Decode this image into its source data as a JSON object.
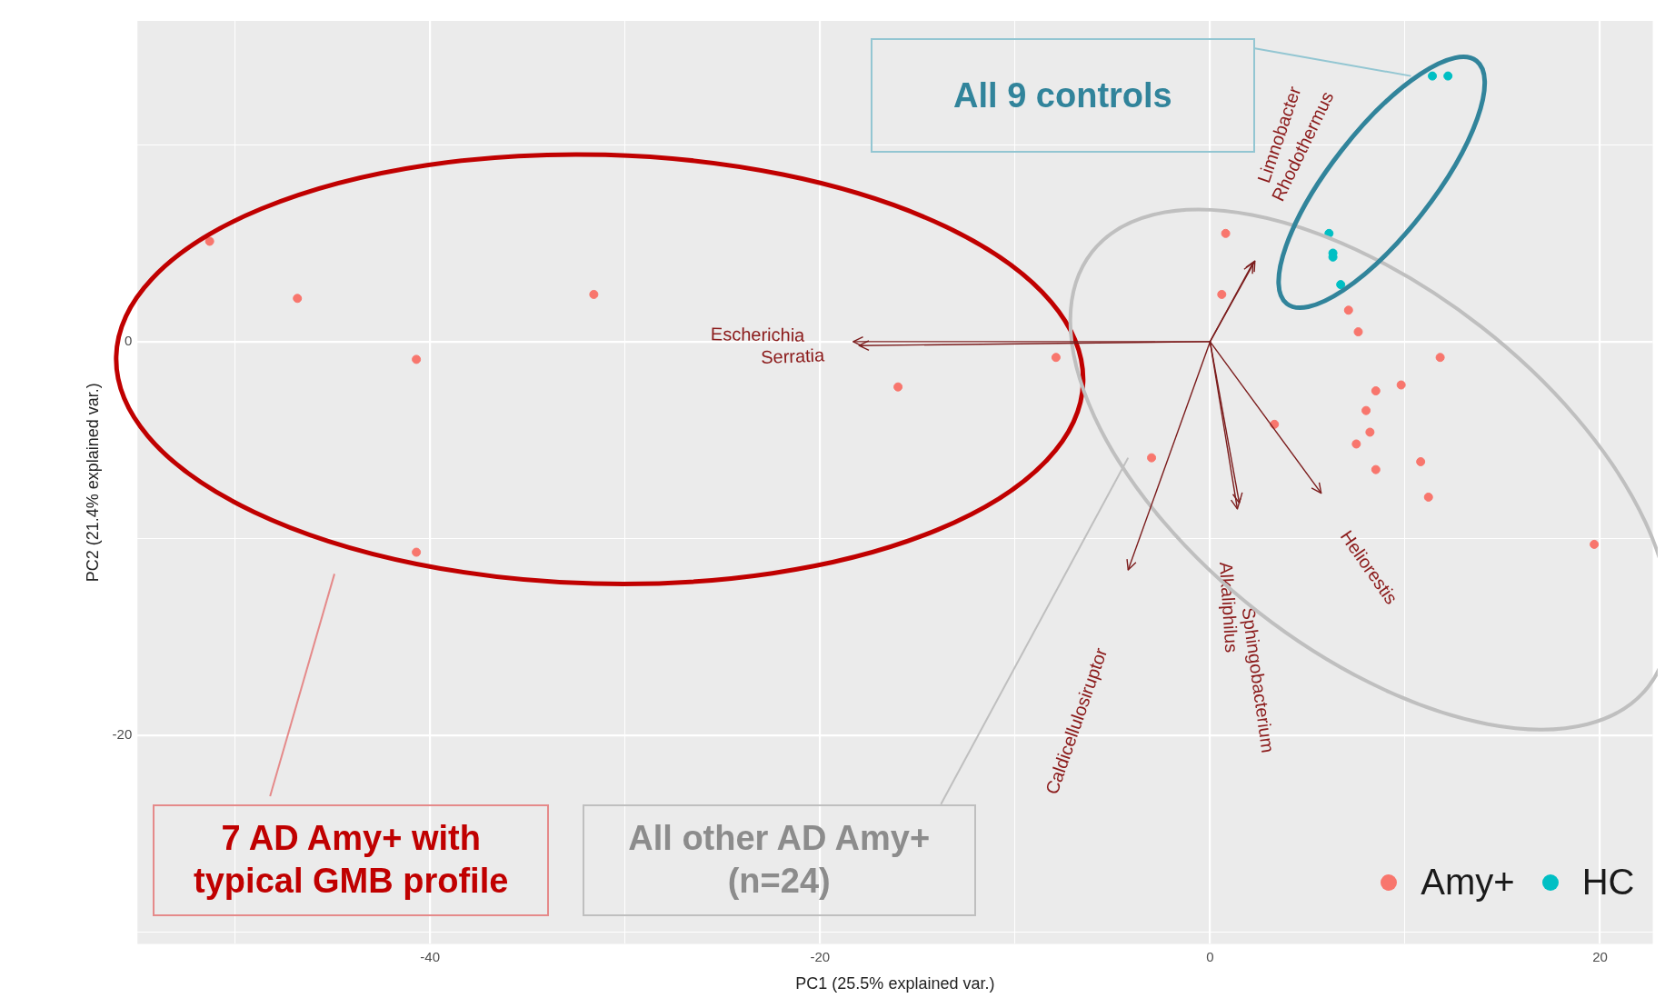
{
  "chart_data": {
    "type": "scatter",
    "xlabel": "PC1 (25.5% explained var.)",
    "ylabel": "PC2 (21.4% explained var.)",
    "xlim": [
      -55,
      22.7
    ],
    "ylim": [
      -30.6,
      16.3
    ],
    "xticks": [
      {
        "value": -50,
        "label": null
      },
      -40,
      {
        "value": -30,
        "label": null
      },
      -20,
      {
        "value": -10,
        "label": null
      },
      0,
      {
        "value": 10,
        "label": null
      },
      20
    ],
    "yticks": [
      {
        "value": -30,
        "label": null
      },
      -20,
      {
        "value": -10,
        "label": null
      },
      0,
      {
        "value": 10,
        "label": null
      }
    ],
    "grid": true,
    "legend": "bottom right",
    "marker": "circle",
    "series": [
      {
        "name": "Amy+",
        "color": "#f8766d",
        "x": [
          -51.3,
          -46.8,
          -31.6,
          -40.7,
          -40.7,
          -7.9,
          -16.0,
          0.8,
          0.6,
          -3.0,
          3.3,
          7.1,
          7.6,
          11.8,
          9.8,
          8.5,
          8.0,
          8.2,
          7.5,
          8.5,
          10.8,
          11.2,
          19.7
        ],
        "values": [
          5.1,
          2.2,
          2.4,
          -0.9,
          -10.7,
          -0.8,
          -2.3,
          5.5,
          2.4,
          -5.9,
          -4.2,
          1.6,
          0.5,
          -0.8,
          -2.2,
          -2.5,
          -3.5,
          -4.6,
          -5.2,
          -6.5,
          -6.1,
          -7.9,
          -10.3
        ]
      },
      {
        "name": "HC",
        "color": "#00bfc4",
        "x": [
          11.4,
          12.2,
          6.1,
          6.3,
          6.3,
          6.7
        ],
        "values": [
          13.5,
          13.5,
          5.5,
          4.5,
          4.3,
          2.9
        ]
      }
    ],
    "annotations": [
      "All 9 controls",
      "7 AD Amy+ with typical GMB profile",
      "All other AD Amy+ (n=24)",
      "Escherichia",
      "Serratia",
      "Rhodothermus",
      "Limnobacter",
      "Heliorestis",
      "Caldicellulosiruptor",
      "Alkaliphilus",
      "Sphingobacterium"
    ]
  }
}
